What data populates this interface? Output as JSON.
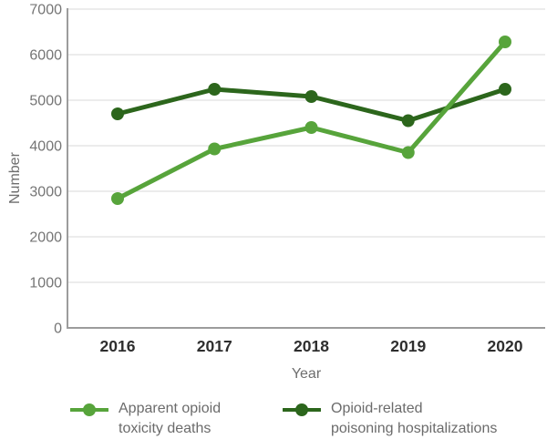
{
  "chart_data": {
    "type": "line",
    "title": "",
    "xlabel": "Year",
    "ylabel": "Number",
    "categories": [
      "2016",
      "2017",
      "2018",
      "2019",
      "2020"
    ],
    "series": [
      {
        "name": "Apparent opioid toxicity deaths",
        "legend_lines": [
          "Apparent opioid",
          "toxicity deaths"
        ],
        "color": "#57a43b",
        "values": [
          2840,
          3930,
          4400,
          3850,
          6280
        ]
      },
      {
        "name": "Opioid-related poisoning hospitalizations",
        "legend_lines": [
          "Opioid-related",
          "poisoning hospitalizations"
        ],
        "color": "#2c661c",
        "values": [
          4700,
          5240,
          5080,
          4550,
          5240
        ]
      }
    ],
    "ylim": [
      0,
      7000
    ],
    "yticks": [
      0,
      1000,
      2000,
      3000,
      4000,
      5000,
      6000,
      7000
    ],
    "grid": "horizontal-only",
    "legend_position": "bottom"
  },
  "style_colors": {
    "background": "#ffffff",
    "axis_line": "#9c9c9c",
    "gridline": "#d8d8d8",
    "y_tick_label": "#757575",
    "x_tick_label": "#2e2e2e",
    "axis_title": "#6e6e6e",
    "legend_text": "#6b6b6b"
  }
}
